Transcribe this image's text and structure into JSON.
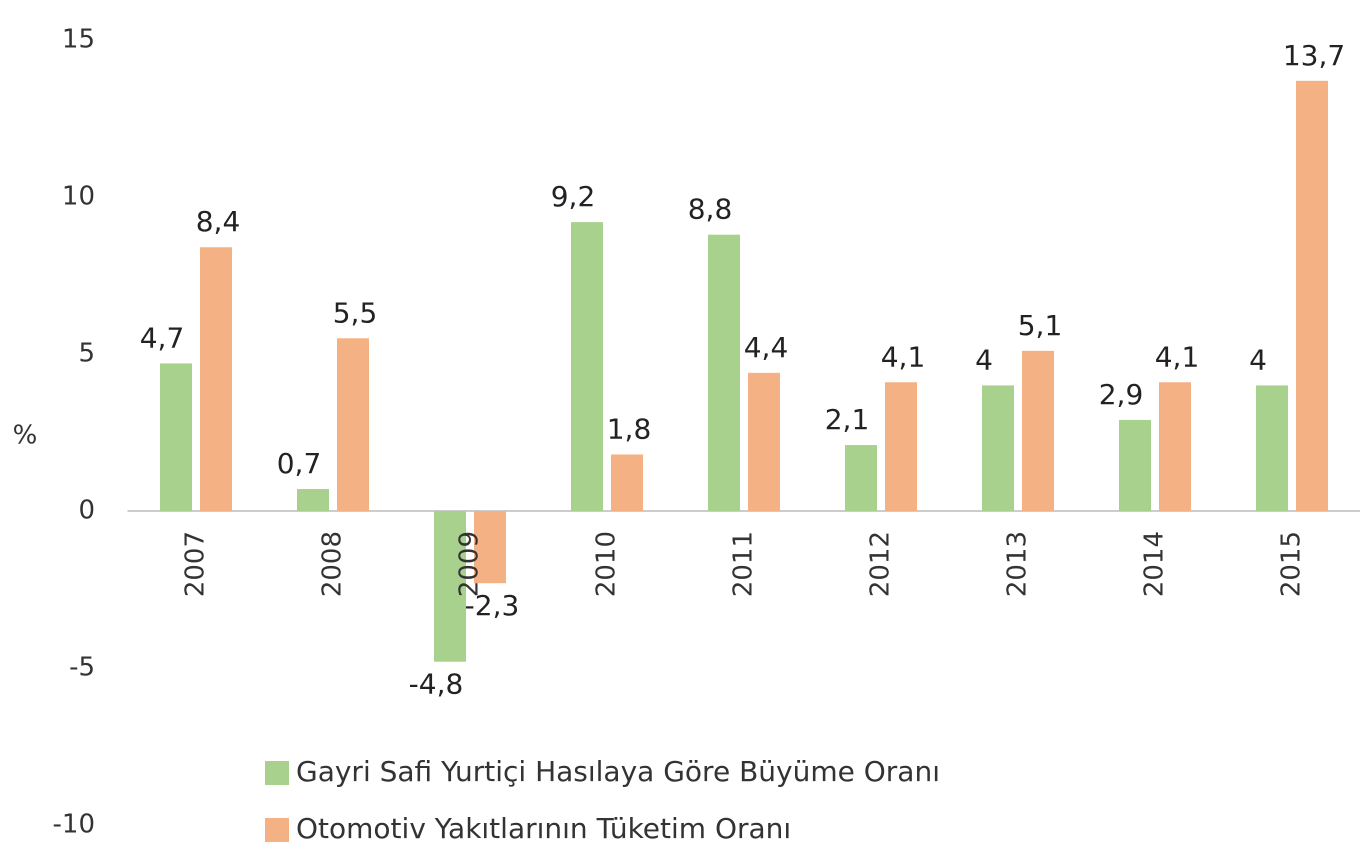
{
  "chart_data": {
    "type": "bar",
    "ylabel": "%",
    "categories": [
      "2007",
      "2008",
      "2009",
      "2010",
      "2011",
      "2012",
      "2013",
      "2014",
      "2015"
    ],
    "series": [
      {
        "name": "Gayri Safi Yurtiçi Hasılaya Göre Büyüme Oranı",
        "color": "#a9d18e",
        "values": [
          4.7,
          0.7,
          -4.8,
          9.2,
          8.8,
          2.1,
          4,
          2.9,
          4
        ],
        "value_labels": [
          "4,7",
          "0,7",
          "-4,8",
          "9,2",
          "8,8",
          "2,1",
          "4",
          "2,9",
          "4"
        ]
      },
      {
        "name": "Otomotiv Yakıtlarının Tüketim Oranı",
        "color": "#f4b183",
        "values": [
          8.4,
          5.5,
          -2.3,
          1.8,
          4.4,
          4.1,
          5.1,
          4.1,
          13.7
        ],
        "value_labels": [
          "8,4",
          "5,5",
          "-2,3",
          "1,8",
          "4,4",
          "4,1",
          "5,1",
          "4,1",
          "13,7"
        ]
      }
    ],
    "ylim": [
      -10,
      15
    ],
    "yticks": [
      -10,
      -5,
      0,
      5,
      10,
      15
    ],
    "grid": false
  }
}
